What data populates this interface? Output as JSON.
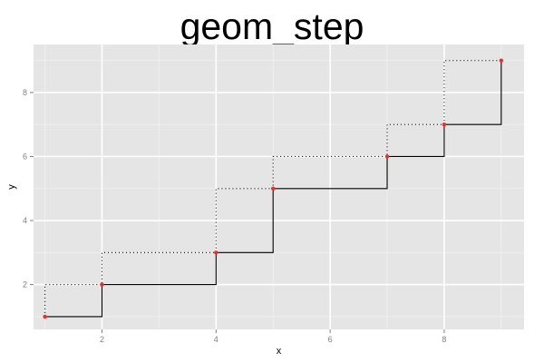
{
  "chart_data": {
    "type": "line",
    "title": "geom_step",
    "xlabel": "x",
    "ylabel": "y",
    "xlim": [
      0.8,
      9.4
    ],
    "ylim": [
      0.6,
      9.5
    ],
    "x_ticks": [
      2,
      4,
      6,
      8
    ],
    "y_ticks": [
      2,
      4,
      6,
      8
    ],
    "x_tick_labels": [
      "2",
      "4",
      "6",
      "8"
    ],
    "y_tick_labels": [
      "2",
      "4",
      "6",
      "8"
    ],
    "grid": true,
    "x": [
      1,
      2,
      4,
      5,
      7,
      8,
      9
    ],
    "y": [
      1,
      2,
      3,
      5,
      6,
      7,
      9
    ],
    "series": [
      {
        "style": "solid",
        "direction": "hv",
        "color": "#000000"
      },
      {
        "style": "dotted",
        "direction": "vh",
        "color": "#000000"
      },
      {
        "style": "points",
        "color": "#e8312a"
      }
    ],
    "colors": {
      "panel_background": "#e5e5e5",
      "grid": "#ffffff",
      "points": "#e8312a",
      "lines": "#000000"
    }
  }
}
